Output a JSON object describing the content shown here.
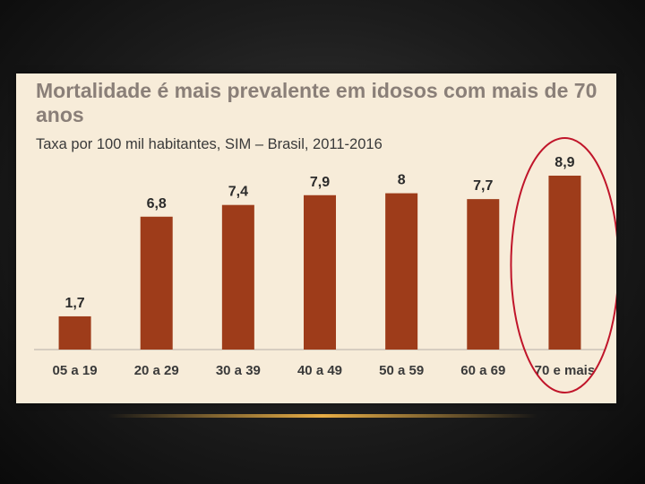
{
  "chart_data": {
    "type": "bar",
    "title": "Mortalidade é mais prevalente em idosos com mais de 70 anos",
    "subtitle": "Taxa por 100 mil habitantes, SIM – Brasil, 2011-2016",
    "categories": [
      "05 a 19",
      "20 a 29",
      "30 a 39",
      "40 a 49",
      "50 a 59",
      "60 a 69",
      "70 e mais"
    ],
    "values": [
      1.7,
      6.8,
      7.4,
      7.9,
      8,
      7.7,
      8.9
    ],
    "value_labels": [
      "1,7",
      "6,8",
      "7,4",
      "7,9",
      "8",
      "7,7",
      "8,9"
    ],
    "ylim": [
      0,
      10
    ],
    "grid": false,
    "legend": "none",
    "highlight_category": "70 e mais",
    "bar_color": "#9e3c1a",
    "highlight_ellipse_color": "#c0152a",
    "background_color": "#f7ecd9",
    "title_color": "#8a7f78"
  }
}
